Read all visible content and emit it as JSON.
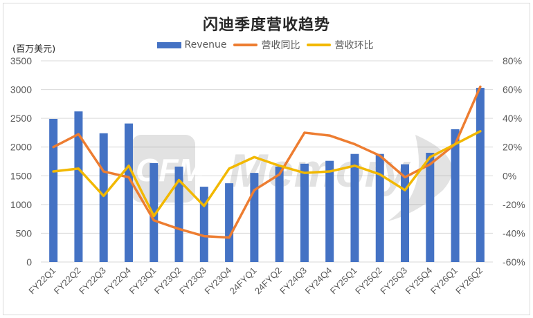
{
  "chart_data": {
    "type": "bar",
    "title": "闪迪季度营收趋势",
    "unit_label": "(百万美元)",
    "xlabel": "",
    "ylabel": "百万美元",
    "ylim": [
      0,
      3500
    ],
    "y2lim": [
      -60,
      80
    ],
    "y_ticks": [
      "0",
      "500",
      "1000",
      "1500",
      "2000",
      "2500",
      "3000",
      "3500"
    ],
    "y2_ticks": [
      "-60%",
      "-40%",
      "-20%",
      "0%",
      "20%",
      "40%",
      "60%",
      "80%"
    ],
    "grid": true,
    "legend_position": "top",
    "categories": [
      "FY22Q1",
      "FY22Q2",
      "FY22Q3",
      "FY22Q4",
      "FY23Q1",
      "FY23Q2",
      "FY23Q3",
      "FY23Q4",
      "24FYQ1",
      "24FYQ2",
      "FY24Q3",
      "FY24Q4",
      "FY25Q1",
      "FY25Q2",
      "FY25Q3",
      "FY25Q4",
      "FY26Q1",
      "FY26Q2"
    ],
    "series": [
      {
        "name": "Revenue",
        "type": "bar",
        "axis": "left",
        "color": "#4472C4",
        "values": [
          2490,
          2620,
          2240,
          2410,
          1720,
          1660,
          1310,
          1370,
          1550,
          1660,
          1710,
          1760,
          1880,
          1880,
          1700,
          1900,
          2310,
          3030
        ]
      },
      {
        "name": "营收同比",
        "type": "line",
        "axis": "right",
        "unit": "%",
        "color": "#ED7D31",
        "values": [
          20,
          29,
          3,
          -1,
          -31,
          -37,
          -42,
          -43,
          -10,
          1,
          30,
          28,
          22,
          14,
          -1,
          8,
          22,
          62
        ]
      },
      {
        "name": "营收环比",
        "type": "line",
        "axis": "right",
        "unit": "%",
        "color": "#F2B800",
        "values": [
          3,
          5,
          -14,
          7,
          -28,
          -3,
          -21,
          5,
          13,
          7,
          2,
          3,
          7,
          1,
          -10,
          13,
          22,
          31
        ]
      }
    ]
  },
  "legend": {
    "revenue_label": "Revenue",
    "yoy_label": "营收同比",
    "qoq_label": "营收环比"
  },
  "watermark": "CFM Memory"
}
